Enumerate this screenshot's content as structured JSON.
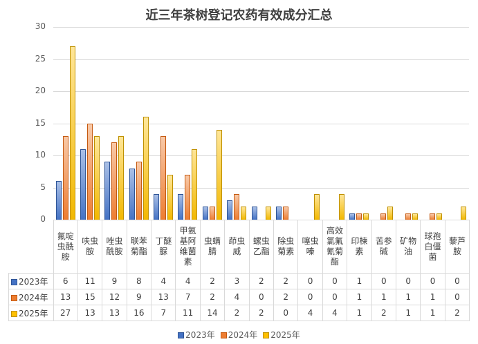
{
  "chart_data": {
    "type": "bar",
    "title": "近三年茶树登记农药有效成分汇总",
    "xlabel": "",
    "ylabel": "",
    "ylim": [
      0,
      30
    ],
    "yticks": [
      0,
      5,
      10,
      15,
      20,
      25,
      30
    ],
    "grid": true,
    "legend_position": "bottom",
    "data_table": true,
    "categories": [
      "氟啶虫酰胺",
      "呋虫胺",
      "唑虫酰胺",
      "联苯菊酯",
      "丁醚脲",
      "甲氨基阿维菌素",
      "虫螨腈",
      "茚虫威",
      "螺虫乙酯",
      "除虫菊素",
      "噻虫嗪",
      "高效氯氟氰菊酯",
      "印楝素",
      "苦参碱",
      "矿物油",
      "球孢白僵菌",
      "藜芦胺"
    ],
    "category_lines": [
      [
        "氟啶",
        "虫酰",
        "胺"
      ],
      [
        "呋虫",
        "胺"
      ],
      [
        "唑虫",
        "酰胺"
      ],
      [
        "联苯",
        "菊酯"
      ],
      [
        "丁醚",
        "脲"
      ],
      [
        "甲氨",
        "基阿",
        "维菌",
        "素"
      ],
      [
        "虫螨",
        "腈"
      ],
      [
        "茚虫",
        "威"
      ],
      [
        "螺虫",
        "乙酯"
      ],
      [
        "除虫",
        "菊素"
      ],
      [
        "噻虫",
        "嗪"
      ],
      [
        "高效",
        "氯氟",
        "氰菊",
        "酯"
      ],
      [
        "印楝",
        "素"
      ],
      [
        "苦参",
        "碱"
      ],
      [
        "矿物",
        "油"
      ],
      [
        "球孢",
        "白僵",
        "菌"
      ],
      [
        "藜芦",
        "胺"
      ]
    ],
    "series": [
      {
        "name": "2023年",
        "color": "#4472c4",
        "values": [
          6,
          11,
          9,
          8,
          4,
          4,
          2,
          3,
          2,
          2,
          0,
          0,
          1,
          0,
          0,
          0,
          0
        ]
      },
      {
        "name": "2024年",
        "color": "#ed7d31",
        "values": [
          13,
          15,
          12,
          9,
          13,
          7,
          2,
          4,
          0,
          2,
          0,
          0,
          1,
          1,
          1,
          1,
          0
        ]
      },
      {
        "name": "2025年",
        "color": "#ffc000",
        "values": [
          27,
          13,
          13,
          16,
          7,
          11,
          14,
          2,
          2,
          0,
          4,
          4,
          1,
          2,
          1,
          1,
          2
        ]
      }
    ]
  }
}
